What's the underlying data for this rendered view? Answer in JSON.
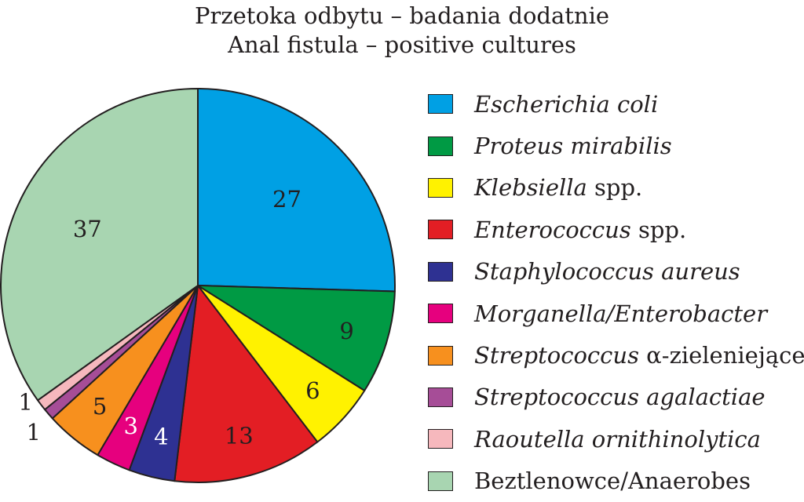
{
  "chart_data": {
    "type": "pie",
    "title": "Przetoka odbytu – badania dodatnie",
    "subtitle": "Anal fistula – positive cultures",
    "slices": [
      {
        "label": "Escherichia coli",
        "value": 27,
        "color": "#00a0e4",
        "label_italic": "Escherichia coli",
        "label_plain": ""
      },
      {
        "label": "Proteus mirabilis",
        "value": 9,
        "color": "#009a44",
        "label_italic": "Proteus mirabilis",
        "label_plain": ""
      },
      {
        "label": "Klebsiella spp.",
        "value": 6,
        "color": "#fff200",
        "label_italic": "Klebsiella",
        "label_plain": " spp."
      },
      {
        "label": "Enterococcus spp.",
        "value": 13,
        "color": "#e31e24",
        "label_italic": "Enterococcus",
        "label_plain": " spp."
      },
      {
        "label": "Staphylococcus aureus",
        "value": 4,
        "color": "#2e3192",
        "label_italic": "Staphylococcus aureus",
        "label_plain": ""
      },
      {
        "label": "Morganella/Enterobacter",
        "value": 3,
        "color": "#e6007e",
        "label_italic": "Morganella/Enterobacter",
        "label_plain": ""
      },
      {
        "label": "Streptococcus α-zieleniejące",
        "value": 5,
        "color": "#f7901e",
        "label_italic": "Streptococcus",
        "label_plain": " α-zieleniejące"
      },
      {
        "label": "Streptococcus agalactiae",
        "value": 1,
        "color": "#a64d97",
        "label_italic": "Streptococcus agalactiae",
        "label_plain": ""
      },
      {
        "label": "Raoutella ornithinolytica",
        "value": 1,
        "color": "#f6b8bd",
        "label_italic": "Raoutella ornithinolytica",
        "label_plain": ""
      },
      {
        "label": "Beztlenowce/Anaerobes",
        "value": 37,
        "color": "#a8d5b1",
        "label_italic": "",
        "label_plain": "Beztlenowce/Anaerobes"
      }
    ],
    "data_labels_shown": true,
    "start_angle": "12 o'clock",
    "direction": "clockwise",
    "legend_position": "right"
  }
}
